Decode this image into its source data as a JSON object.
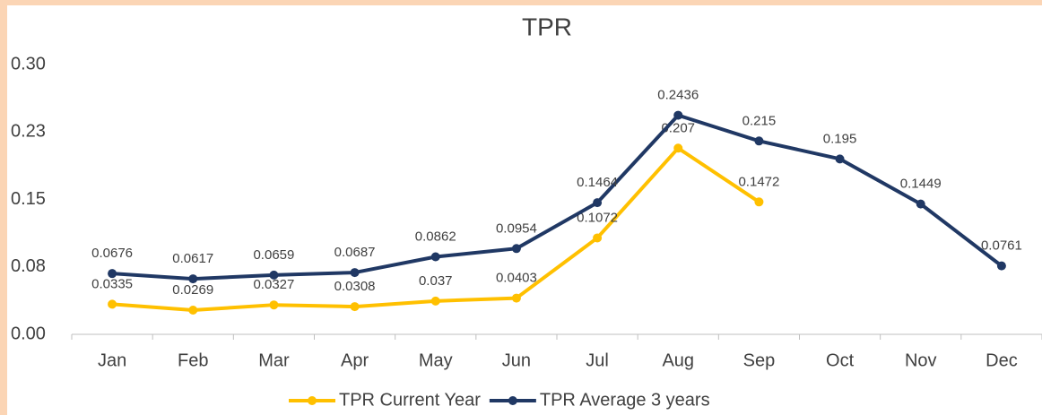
{
  "chart_data": {
    "type": "line",
    "title": "TPR",
    "categories": [
      "Jan",
      "Feb",
      "Mar",
      "Apr",
      "May",
      "Jun",
      "Jul",
      "Aug",
      "Sep",
      "Oct",
      "Nov",
      "Dec"
    ],
    "series": [
      {
        "name": "TPR Current Year",
        "color": "#ffc000",
        "values": [
          0.0335,
          0.0269,
          0.0327,
          0.0308,
          0.037,
          0.0403,
          0.1072,
          0.207,
          0.1472,
          null,
          null,
          null
        ]
      },
      {
        "name": "TPR Average 3 years",
        "color": "#203864",
        "values": [
          0.0676,
          0.0617,
          0.0659,
          0.0687,
          0.0862,
          0.0954,
          0.1464,
          0.2436,
          0.215,
          0.195,
          0.1449,
          0.0761
        ]
      }
    ],
    "ylim": [
      0,
      0.3
    ],
    "yticks": [
      {
        "value": 0,
        "label": "0.00"
      },
      {
        "value": 0.075,
        "label": "0.08"
      },
      0.15,
      {
        "value": 0.225,
        "label": "0.23"
      },
      {
        "value": 0.3,
        "label": "0.30"
      }
    ],
    "grid": false
  }
}
